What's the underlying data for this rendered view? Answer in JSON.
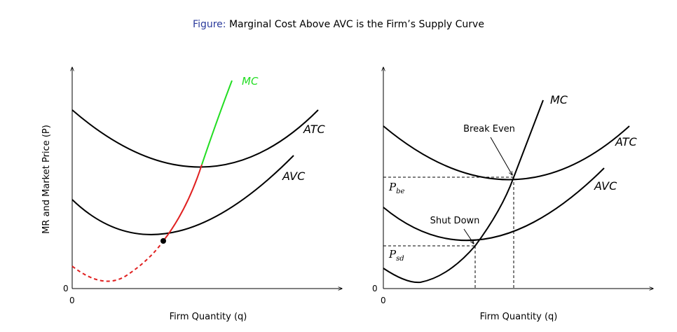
{
  "title": {
    "label": "Figure:",
    "text": "Marginal Cost Above AVC is the Firm’s Supply Curve"
  },
  "colors": {
    "title_label": "#2b3b9c",
    "mc_supply": "#22dd22",
    "mc_below": "#e02020",
    "curve": "#000000"
  },
  "left_panel": {
    "ylabel": "MR and Market Price (P)",
    "xlabel": "Firm Quantity (q)",
    "origin_x": "0",
    "origin_y": "0",
    "curves": {
      "mc": "MC",
      "atc": "ATC",
      "avc": "AVC"
    }
  },
  "right_panel": {
    "xlabel": "Firm Quantity (q)",
    "origin_x": "0",
    "origin_y": "0",
    "curves": {
      "mc": "MC",
      "atc": "ATC",
      "avc": "AVC"
    },
    "annotations": {
      "break_even": "Break Even",
      "shut_down": "Shut Down"
    },
    "price_labels": {
      "p_be_main": "P",
      "p_be_sub": "be",
      "p_sd_main": "P",
      "p_sd_sub": "sd"
    }
  }
}
